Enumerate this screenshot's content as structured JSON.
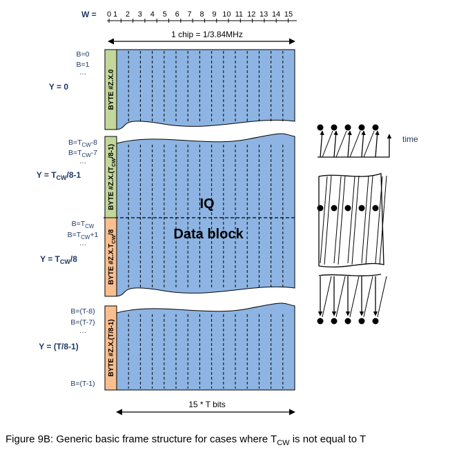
{
  "header": {
    "w_label": "W =",
    "columns": [
      "0",
      "1",
      "2",
      "3",
      "4",
      "5",
      "6",
      "7",
      "8",
      "9",
      "10",
      "11",
      "12",
      "13",
      "14",
      "15"
    ]
  },
  "chip_label": "1  chip  = 1/3.84MHz",
  "bits_label": "15 * T bits",
  "caption": {
    "main": "Figure 9B: Generic basic frame structure for cases where T",
    "sub": "CW",
    "tail": " is not equal to T"
  },
  "center_text": {
    "line1": "IQ",
    "line2": "Data block"
  },
  "time_label": "time",
  "sections": [
    {
      "y_main": "Y = 0",
      "y_sub": "",
      "y_tail": "",
      "byte_main": "BYTE #Z.X.0",
      "byte_sub": "",
      "byte_tail": "",
      "byte_color": "#c4d79b",
      "b_labels": [
        {
          "main": "B=0",
          "sub": "",
          "tail": ""
        },
        {
          "main": "B=1",
          "sub": "",
          "tail": ""
        },
        {
          "main": "…",
          "sub": "",
          "tail": ""
        }
      ]
    },
    {
      "y_main": "Y = T",
      "y_sub": "CW",
      "y_tail": "/8-1",
      "byte_main": "BYTE #Z.X.(T",
      "byte_sub": "CW",
      "byte_tail": "/8-1)",
      "byte_color": "#c4d79b",
      "b_labels": [
        {
          "main": "B=T",
          "sub": "CW",
          "tail": "-8"
        },
        {
          "main": "B=T",
          "sub": "CW",
          "tail": "-7"
        },
        {
          "main": "…",
          "sub": "",
          "tail": ""
        }
      ]
    },
    {
      "y_main": "Y = T",
      "y_sub": "CW",
      "y_tail": "/8",
      "byte_main": "BYTE #Z.X.T",
      "byte_sub": "CW",
      "byte_tail": "/8",
      "byte_color": "#fabf8f",
      "b_labels": [
        {
          "main": "B=T",
          "sub": "CW",
          "tail": ""
        },
        {
          "main": "B=T",
          "sub": "CW",
          "tail": "+1"
        },
        {
          "main": "…",
          "sub": "",
          "tail": ""
        }
      ]
    },
    {
      "y_main": "Y = (T/8-1)",
      "y_sub": "",
      "y_tail": "",
      "byte_main": "BYTE #Z.X.(T/8-1)",
      "byte_sub": "",
      "byte_tail": "",
      "byte_color": "#fabf8f",
      "b_labels": [
        {
          "main": "B=(T-8)",
          "sub": "",
          "tail": ""
        },
        {
          "main": "B=(T-7)",
          "sub": "",
          "tail": ""
        },
        {
          "main": "…",
          "sub": "",
          "tail": ""
        },
        {
          "main": "B=(T-1)",
          "sub": "",
          "tail": ""
        }
      ]
    }
  ],
  "colors": {
    "data_block": "#8db4e2",
    "line": "#000000",
    "text": "#1f3864"
  }
}
